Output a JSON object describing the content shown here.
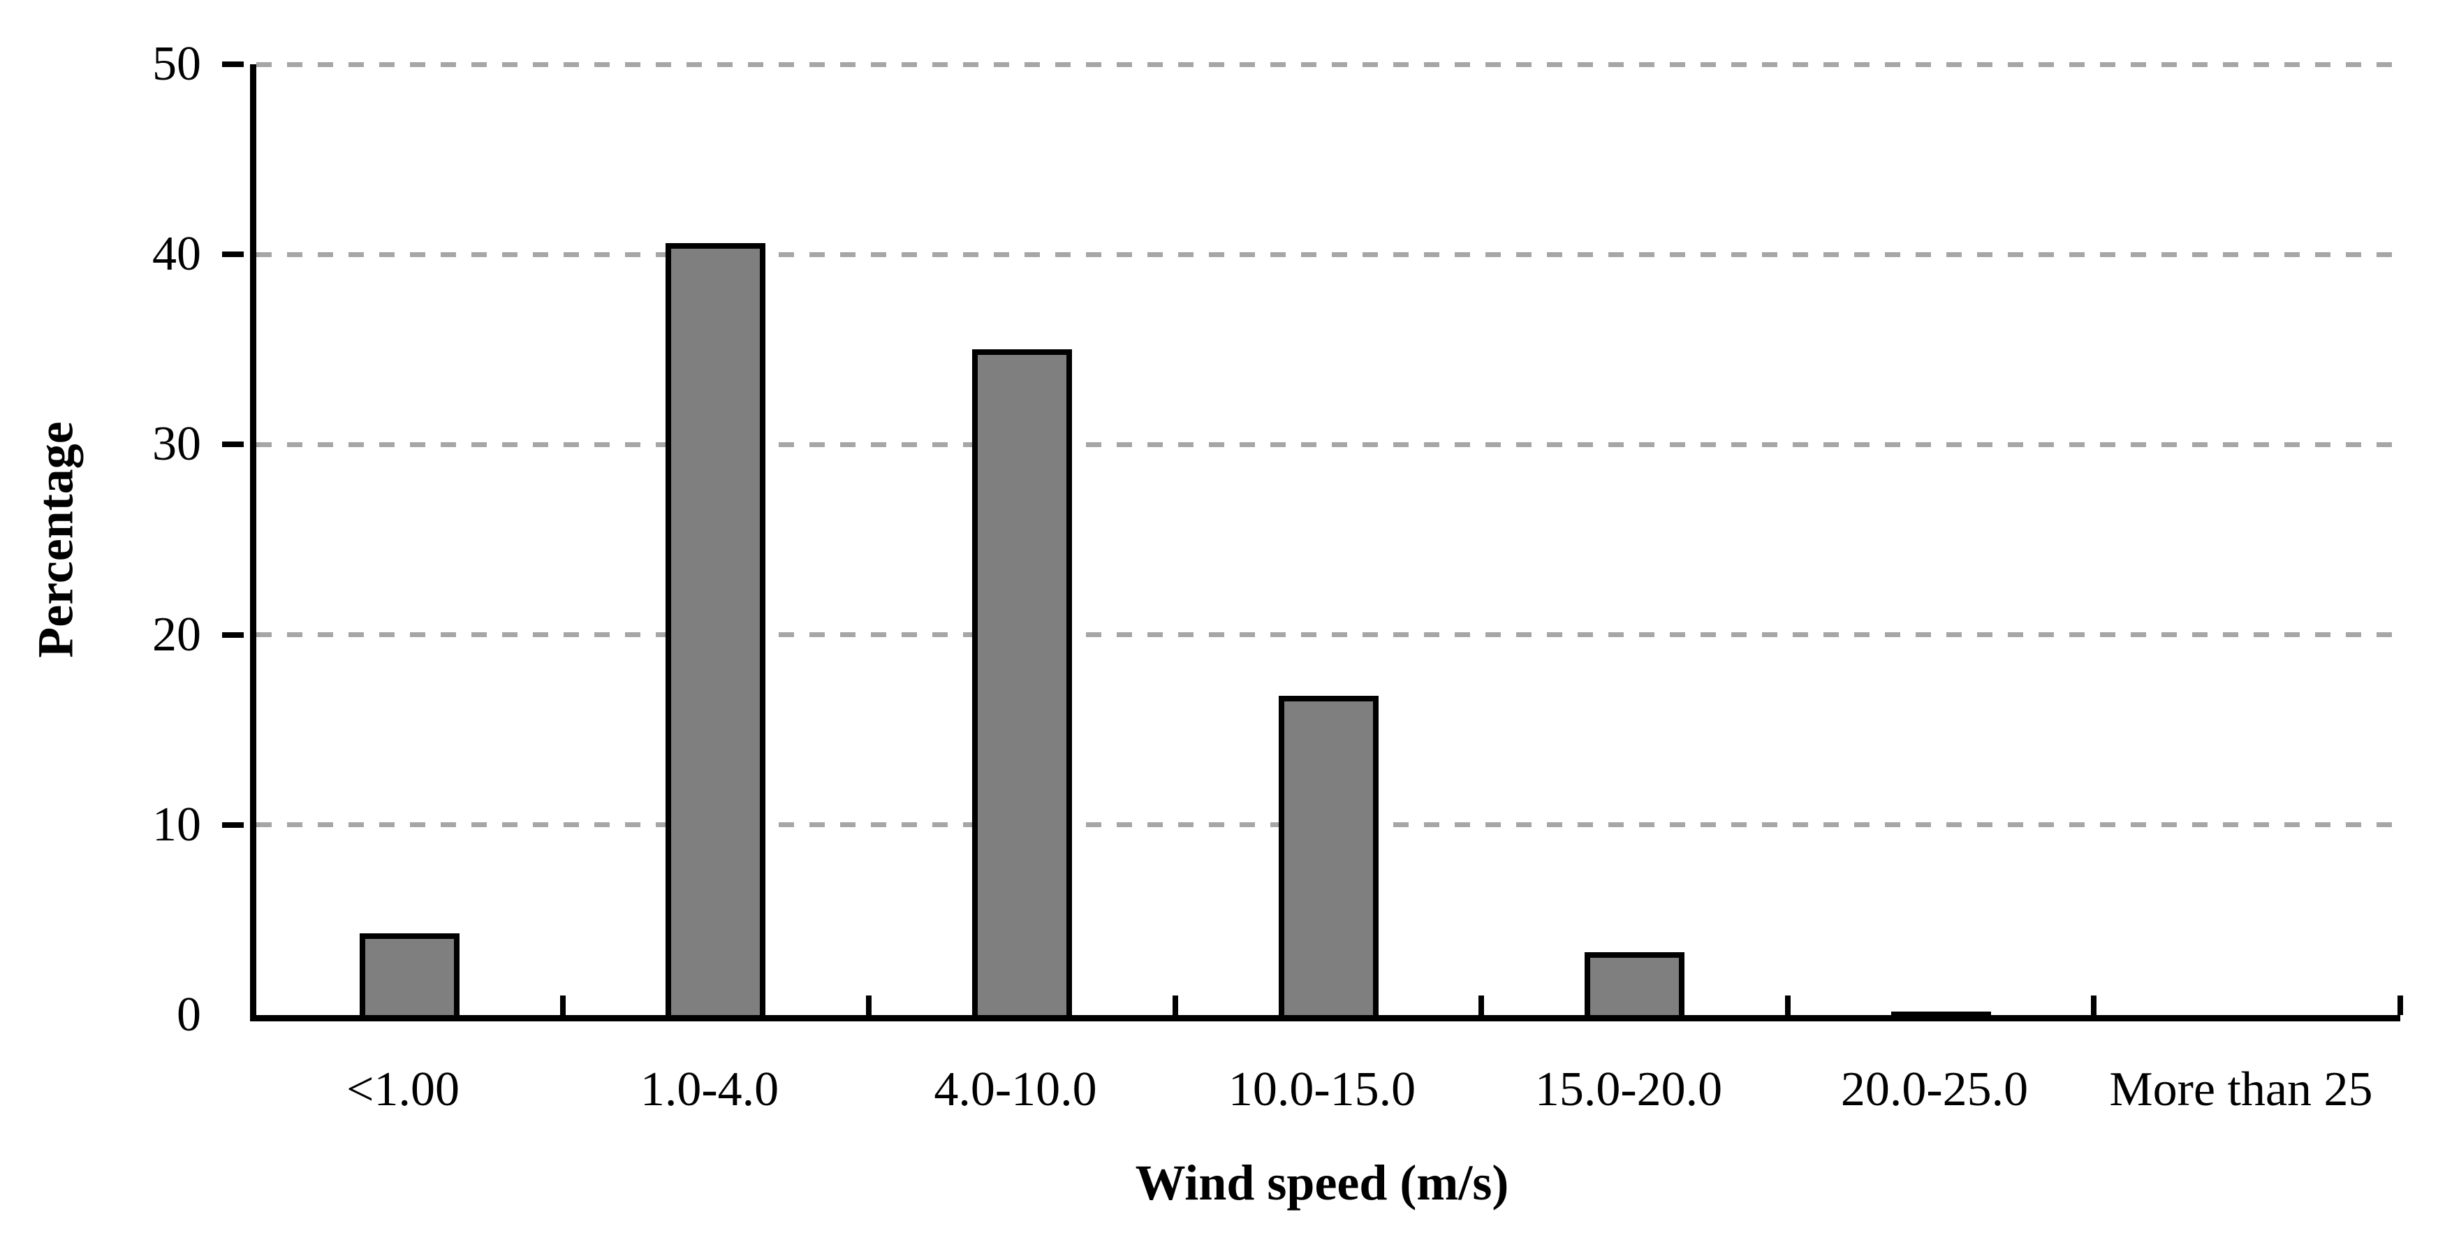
{
  "chart_data": {
    "type": "bar",
    "title": "",
    "xlabel": "Wind speed (m/s)",
    "ylabel": "Percentage",
    "categories": [
      "<1.00",
      "1.0-4.0",
      "4.0-10.0",
      "10.0-15.0",
      "15.0-20.0",
      "20.0-25.0",
      "More than 25"
    ],
    "values": [
      4.3,
      40.6,
      35.0,
      16.8,
      3.3,
      0.2,
      0
    ],
    "ylim": [
      0,
      50
    ],
    "yticks": [
      0,
      10,
      20,
      30,
      40,
      50
    ],
    "legend_position": "none",
    "grid": "horizontal-dashed",
    "colors": {
      "bar_fill": "#7f7f7f",
      "bar_border": "#000000",
      "gridline": "#a6a6a6",
      "axis": "#000000",
      "text": "#000000",
      "background": "#ffffff"
    }
  }
}
